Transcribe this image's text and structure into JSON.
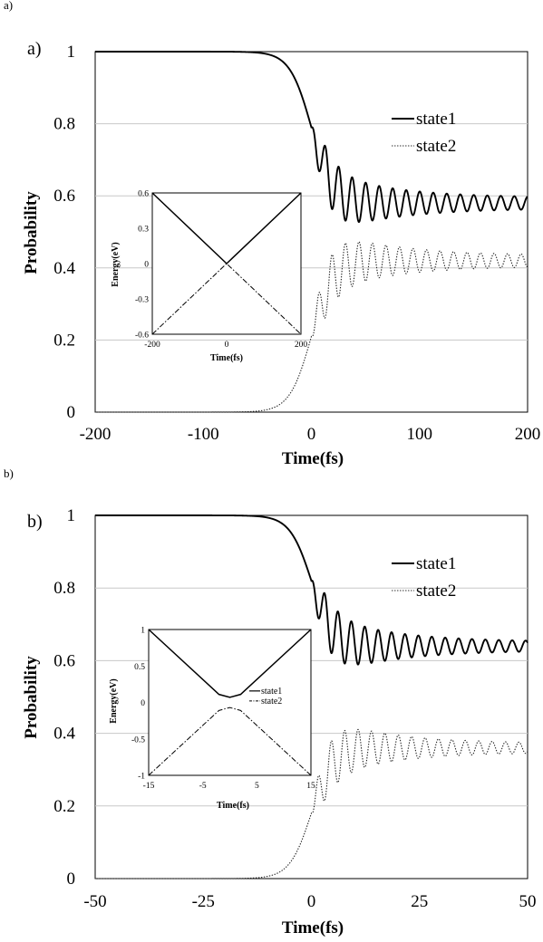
{
  "figure": {
    "crop_top_a": "a)",
    "crop_top_b": "b)"
  },
  "chart_data": [
    {
      "type": "line",
      "panel_label": "a)",
      "xlabel": "Time(fs)",
      "ylabel": "Probability",
      "xlim": [
        -200,
        200
      ],
      "ylim": [
        0,
        1
      ],
      "xticks": [
        "-200",
        "-100",
        "0",
        "100",
        "200"
      ],
      "yticks": [
        "0",
        "0.2",
        "0.4",
        "0.6",
        "0.8",
        "1"
      ],
      "grid": "horizontal",
      "legend": {
        "position": "top-right",
        "entries": [
          "state1",
          "state2"
        ]
      },
      "series": [
        {
          "name": "state1",
          "style": "solid",
          "model": {
            "t0": 0,
            "width": 10,
            "t_on": 0,
            "final": 0.58,
            "dip": 0.45,
            "osc_amp": 0.09,
            "osc_period": 12.5,
            "osc_decay": 60,
            "osc_floor": 0.015,
            "osc_phase_time": 19
          }
        },
        {
          "name": "state2",
          "style": "dotted",
          "model": {
            "complement_of": "state1"
          }
        }
      ],
      "inset": {
        "xlabel": "Time(fs)",
        "ylabel": "Energy(eV)",
        "xlim": [
          -200,
          200
        ],
        "ylim": [
          -0.6,
          0.6
        ],
        "xticks": [
          "-200",
          "0",
          "200"
        ],
        "yticks": [
          "-0.6",
          "-0.3",
          "0",
          "0.3",
          "0.6"
        ],
        "x_tick_values": [
          -200,
          0,
          200
        ],
        "y_tick_values": [
          -0.6,
          -0.3,
          0,
          0.3,
          0.6
        ],
        "upper": {
          "x": [
            -200,
            0,
            200
          ],
          "y": [
            0.6,
            0.0,
            0.6
          ]
        },
        "lower": {
          "x": [
            -200,
            0,
            200
          ],
          "y": [
            -0.6,
            0.0,
            -0.6
          ]
        },
        "legend": []
      }
    },
    {
      "type": "line",
      "panel_label": "b)",
      "xlabel": "Time(fs)",
      "ylabel": "Probability",
      "xlim": [
        -50,
        50
      ],
      "ylim": [
        0,
        1
      ],
      "xticks": [
        "-50",
        "-25",
        "0",
        "25",
        "50"
      ],
      "yticks": [
        "0",
        "0.2",
        "0.4",
        "0.6",
        "0.8",
        "1"
      ],
      "grid": "horizontal",
      "legend": {
        "position": "top-right",
        "entries": [
          "state1",
          "state2"
        ]
      },
      "series": [
        {
          "name": "state1",
          "style": "solid",
          "model": {
            "t0": 0,
            "width": 2.5,
            "t_on": 0,
            "final": 0.64,
            "dip": 0.52,
            "osc_amp": 0.09,
            "osc_period": 3.1,
            "osc_decay": 15,
            "osc_floor": 0.012,
            "osc_phase_time": 4.6
          }
        },
        {
          "name": "state2",
          "style": "dotted",
          "model": {
            "complement_of": "state1"
          }
        }
      ],
      "inset": {
        "xlabel": "Time(fs)",
        "ylabel": "Energy(eV)",
        "xlim": [
          -15,
          15
        ],
        "ylim": [
          -1,
          1
        ],
        "xticks": [
          "-15",
          "-5",
          "5",
          "15"
        ],
        "yticks": [
          "-1",
          "-0.5",
          "0",
          "0.5",
          "1"
        ],
        "x_tick_values": [
          -15,
          -5,
          5,
          15
        ],
        "y_tick_values": [
          -1,
          -0.5,
          0,
          0.5,
          1
        ],
        "upper": {
          "x": [
            -15,
            -2,
            0,
            2,
            15
          ],
          "y": [
            1.0,
            0.11,
            0.07,
            0.11,
            1.0
          ]
        },
        "lower": {
          "x": [
            -15,
            -2,
            0,
            2,
            15
          ],
          "y": [
            -1.0,
            -0.11,
            -0.07,
            -0.11,
            -1.0
          ]
        },
        "legend": [
          "state1",
          "state2"
        ]
      }
    }
  ]
}
